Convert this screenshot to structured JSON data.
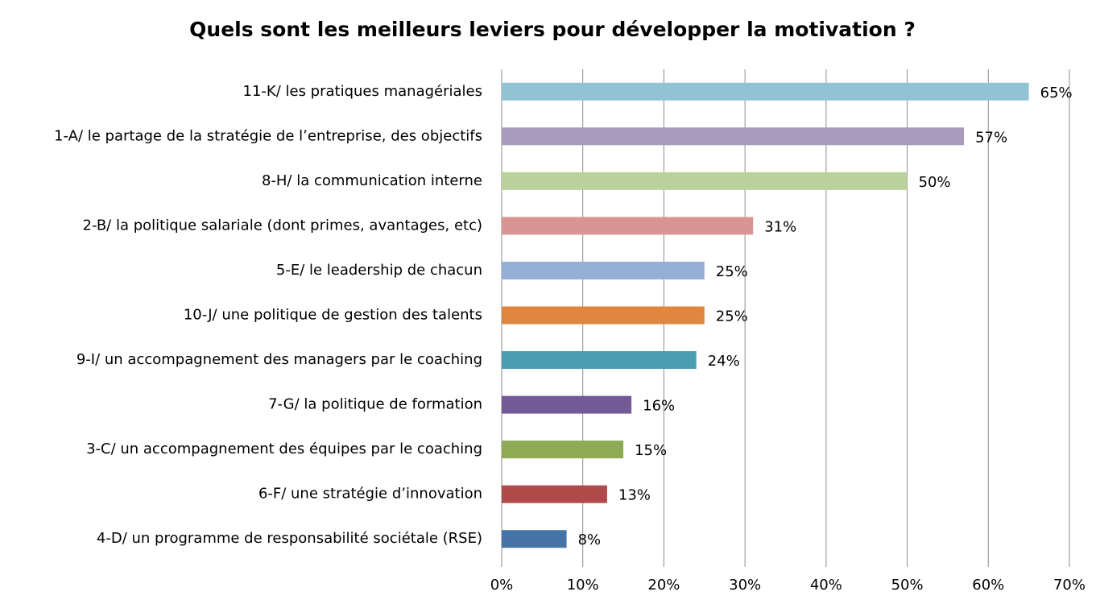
{
  "chart_data": {
    "type": "barh",
    "title": "Quels sont les meilleurs leviers pour développer la motivation ?",
    "categories": [
      "11-K/ les pratiques managériales",
      "1-A/ le partage de la stratégie de l’entreprise, des objectifs",
      "8-H/ la communication interne",
      "2-B/ la politique salariale (dont primes, avantages, etc)",
      "5-E/ le leadership de chacun",
      "10-J/ une politique de gestion des talents",
      "9-I/ un accompagnement des managers par le coaching",
      "7-G/ la politique de formation",
      "3-C/ un accompagnement des équipes par le coaching",
      "6-F/ une stratégie d’innovation",
      "4-D/ un programme de responsabilité sociétale (RSE)"
    ],
    "values": [
      65,
      57,
      50,
      31,
      25,
      25,
      24,
      16,
      15,
      13,
      8
    ],
    "value_labels": [
      "65%",
      "57%",
      "50%",
      "31%",
      "25%",
      "25%",
      "24%",
      "16%",
      "15%",
      "13%",
      "8%"
    ],
    "colors": [
      "#92c3d4",
      "#a99bbd",
      "#b9d29b",
      "#d99594",
      "#95aed8",
      "#e0873f",
      "#4a9db2",
      "#735a96",
      "#8cab52",
      "#b04a49",
      "#4573a8"
    ],
    "xlim": [
      0,
      70
    ],
    "xticks": [
      {
        "value": 0,
        "label": "0%"
      },
      {
        "value": 10,
        "label": "10%"
      },
      {
        "value": 20,
        "label": "20%"
      },
      {
        "value": 30,
        "label": "30%"
      },
      {
        "value": 40,
        "label": "40%"
      },
      {
        "value": 50,
        "label": "50%"
      },
      {
        "value": 60,
        "label": "60%"
      },
      {
        "value": 70,
        "label": "70%"
      }
    ],
    "grid": true
  }
}
